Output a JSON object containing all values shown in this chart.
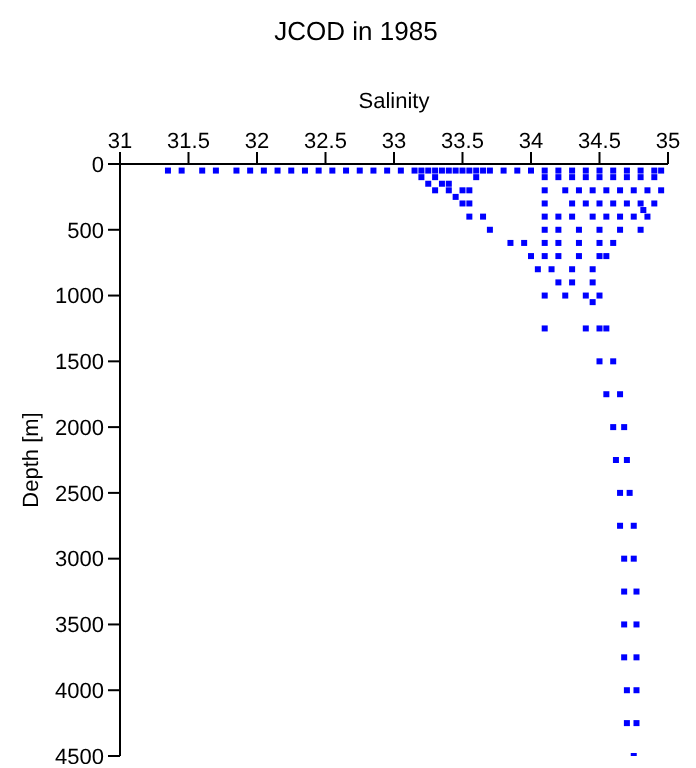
{
  "chart_data": {
    "type": "scatter",
    "title": "JCOD in 1985",
    "xlabel": "Salinity",
    "ylabel": "Depth [m]",
    "xlim": [
      31,
      35
    ],
    "xticks": [
      31,
      31.5,
      32,
      32.5,
      33,
      33.5,
      34,
      34.5,
      35
    ],
    "ylim": [
      4500,
      0
    ],
    "yticks": [
      0,
      500,
      1000,
      1500,
      2000,
      2500,
      3000,
      3500,
      4000,
      4500
    ],
    "grid": false,
    "legend": false,
    "marker": "square",
    "series": [
      {
        "color": "#0000ff",
        "x": [
          31.35,
          31.45,
          31.6,
          31.7,
          31.85,
          31.95,
          32.05,
          32.15,
          32.25,
          32.35,
          32.45,
          32.55,
          32.65,
          32.75,
          32.85,
          32.95,
          33.05,
          33.15,
          33.2,
          33.25,
          33.3,
          33.35,
          33.4,
          33.45,
          33.5,
          33.55,
          33.6,
          33.65,
          33.7,
          33.8,
          33.9,
          34.0,
          34.1,
          34.2,
          34.3,
          34.4,
          34.5,
          34.6,
          34.7,
          34.8,
          34.9,
          34.95,
          33.2,
          33.25,
          33.3,
          33.35,
          33.4,
          33.45,
          33.5,
          33.55,
          33.3,
          33.4,
          33.5,
          33.55,
          33.6,
          34.1,
          34.2,
          34.3,
          34.4,
          34.5,
          34.6,
          34.7,
          34.8,
          34.9,
          34.1,
          34.25,
          34.35,
          34.45,
          34.55,
          34.65,
          34.75,
          34.85,
          34.95,
          34.1,
          34.3,
          34.4,
          34.5,
          34.6,
          34.7,
          34.8,
          34.9,
          33.55,
          33.65,
          34.1,
          34.2,
          34.3,
          34.45,
          34.55,
          34.65,
          34.75,
          34.85,
          34.82,
          33.7,
          34.1,
          34.2,
          34.35,
          34.5,
          34.65,
          34.8,
          33.85,
          33.95,
          34.1,
          34.2,
          34.35,
          34.5,
          34.6,
          34.0,
          34.1,
          34.2,
          34.35,
          34.5,
          34.55,
          34.05,
          34.15,
          34.3,
          34.45,
          34.2,
          34.3,
          34.45,
          34.1,
          34.25,
          34.4,
          34.5,
          34.45,
          34.1,
          34.4,
          34.5,
          34.55,
          34.5,
          34.6,
          34.55,
          34.65,
          34.6,
          34.68,
          34.62,
          34.7,
          34.65,
          34.72,
          34.65,
          34.75,
          34.68,
          34.75,
          34.68,
          34.77,
          34.68,
          34.77,
          34.68,
          34.77,
          34.7,
          34.77,
          34.7,
          34.77,
          34.75
        ],
        "values": [
          50,
          50,
          50,
          50,
          50,
          50,
          50,
          50,
          50,
          50,
          50,
          50,
          50,
          50,
          50,
          50,
          50,
          50,
          50,
          50,
          50,
          50,
          50,
          50,
          50,
          50,
          50,
          50,
          50,
          50,
          50,
          50,
          50,
          50,
          50,
          50,
          50,
          50,
          50,
          50,
          50,
          50,
          100,
          150,
          200,
          150,
          200,
          250,
          200,
          300,
          100,
          150,
          300,
          200,
          100,
          100,
          100,
          100,
          100,
          100,
          100,
          100,
          100,
          100,
          200,
          200,
          200,
          200,
          200,
          200,
          200,
          200,
          200,
          300,
          300,
          300,
          300,
          300,
          300,
          300,
          300,
          400,
          400,
          400,
          400,
          400,
          400,
          400,
          400,
          400,
          400,
          350,
          500,
          500,
          500,
          500,
          500,
          500,
          500,
          600,
          600,
          600,
          600,
          600,
          600,
          600,
          700,
          700,
          700,
          700,
          700,
          700,
          800,
          800,
          800,
          800,
          900,
          900,
          900,
          1000,
          1000,
          1000,
          1000,
          1050,
          1250,
          1250,
          1250,
          1250,
          1500,
          1500,
          1750,
          1750,
          2000,
          2000,
          2250,
          2250,
          2500,
          2500,
          2750,
          2750,
          3000,
          3000,
          3250,
          3250,
          3500,
          3500,
          3750,
          3750,
          4000,
          4000,
          4250,
          4250,
          4500
        ]
      }
    ]
  }
}
